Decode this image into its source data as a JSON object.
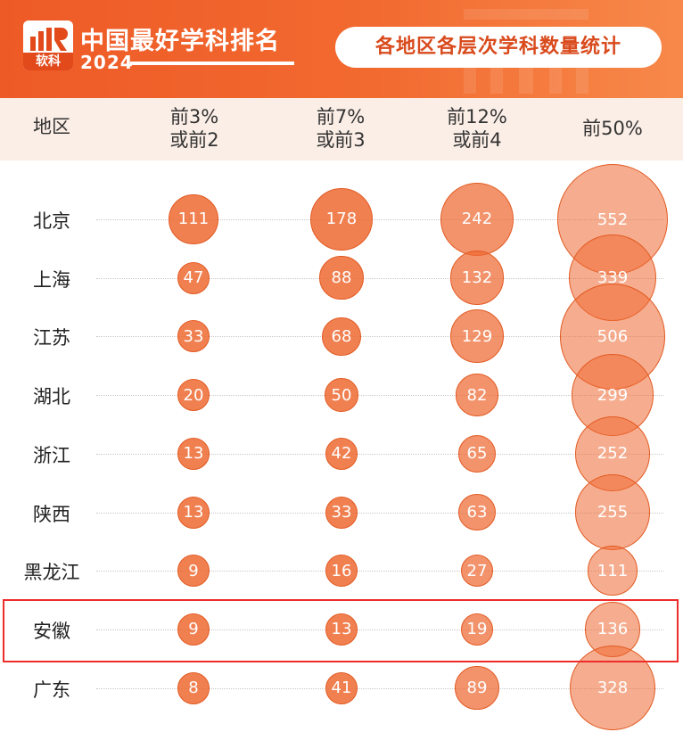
{
  "header": {
    "logo_text": "软科",
    "title": "中国最好学科排名",
    "year": "2024",
    "subtitle": "各地区各层次学科数量统计"
  },
  "columns": {
    "region": "地区",
    "c1": [
      "前3%",
      "或前2"
    ],
    "c2": [
      "前7%",
      "或前3"
    ],
    "c3": [
      "前12%",
      "或前4"
    ],
    "c4": "前50%"
  },
  "chart_data": {
    "type": "table",
    "title": "各地区各层次学科数量统计",
    "columns": [
      "前3%或前2",
      "前7%或前3",
      "前12%或前4",
      "前50%"
    ],
    "rows": [
      {
        "region": "北京",
        "values": [
          111,
          178,
          242,
          552
        ]
      },
      {
        "region": "上海",
        "values": [
          47,
          88,
          132,
          339
        ]
      },
      {
        "region": "江苏",
        "values": [
          33,
          68,
          129,
          506
        ]
      },
      {
        "region": "湖北",
        "values": [
          20,
          50,
          82,
          299
        ]
      },
      {
        "region": "浙江",
        "values": [
          13,
          42,
          65,
          252
        ]
      },
      {
        "region": "陕西",
        "values": [
          13,
          33,
          63,
          255
        ]
      },
      {
        "region": "黑龙江",
        "values": [
          9,
          16,
          27,
          111
        ]
      },
      {
        "region": "安徽",
        "values": [
          9,
          13,
          19,
          136
        ],
        "highlighted": true
      },
      {
        "region": "广东",
        "values": [
          8,
          41,
          89,
          328
        ]
      }
    ]
  },
  "colors": {
    "header": "#f26a30",
    "bubble_fill": "#ee6a33",
    "bubble_stroke": "#e25a22",
    "highlight_border": "#ee2c2c",
    "header_band": "#fbeee6"
  }
}
